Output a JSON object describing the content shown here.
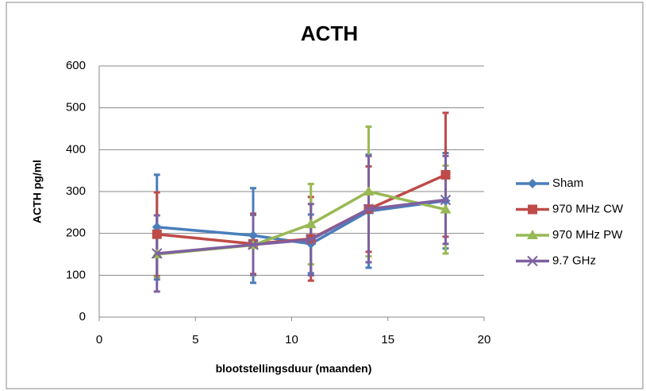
{
  "chart_data": {
    "type": "line",
    "title": "ACTH",
    "x_label": "blootstellingsduur (maanden)",
    "y_label": "ACTH pg/ml",
    "x": [
      3,
      8,
      11,
      14,
      18
    ],
    "series": [
      {
        "name": "Sham",
        "color": "#4a7ebb",
        "marker": "diamond",
        "values": [
          215,
          195,
          175,
          253,
          278
        ],
        "errors": [
          125,
          113,
          70,
          135,
          114
        ]
      },
      {
        "name": "970 MHz CW",
        "color": "#be4b48",
        "marker": "square",
        "values": [
          198,
          175,
          187,
          258,
          340
        ],
        "errors": [
          100,
          72,
          100,
          102,
          148
        ]
      },
      {
        "name": "970 MHz PW",
        "color": "#98b954",
        "marker": "triangle",
        "values": [
          150,
          172,
          222,
          300,
          257
        ],
        "errors": [
          55,
          72,
          96,
          155,
          105
        ]
      },
      {
        "name": "9.7 GHz",
        "color": "#7d60a0",
        "marker": "x",
        "values": [
          152,
          173,
          185,
          258,
          280
        ],
        "errors": [
          91,
          72,
          85,
          127,
          105
        ]
      }
    ],
    "xlim": [
      0,
      20
    ],
    "xticks": [
      0,
      5,
      10,
      15,
      20
    ],
    "ylim": [
      0,
      600
    ],
    "yticks": [
      0,
      100,
      200,
      300,
      400,
      500,
      600
    ],
    "grid": true,
    "legend": "right"
  }
}
